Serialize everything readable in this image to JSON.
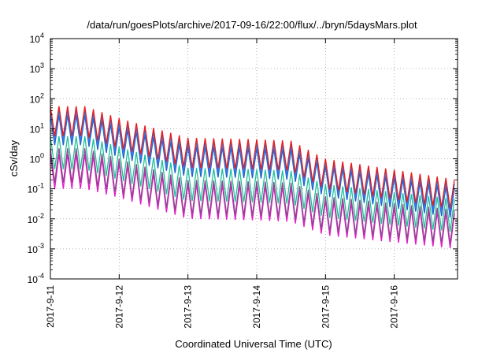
{
  "chart_data": {
    "type": "line",
    "title": "/data/run/goesPlots/archive/2017-09-16/22:00/flux/../bryn/5daysMars.plot",
    "xlabel": "Coordinated Universal Time (UTC)",
    "ylabel": "cSv/day",
    "y_scale": "log",
    "ylim_exponents": [
      -4,
      4
    ],
    "xlim_days": [
      0,
      5.92
    ],
    "grid": true,
    "x_ticks": [
      "2017-9-11",
      "2017-9-12",
      "2017-9-13",
      "2017-9-14",
      "2017-9-15",
      "2017-9-16"
    ],
    "y_ticks": [
      {
        "exp": -4,
        "base": "10",
        "sup": "-4"
      },
      {
        "exp": -3,
        "base": "10",
        "sup": "-3"
      },
      {
        "exp": -2,
        "base": "10",
        "sup": "-2"
      },
      {
        "exp": -1,
        "base": "10",
        "sup": "-1"
      },
      {
        "exp": 0,
        "base": "10",
        "sup": "0"
      },
      {
        "exp": 1,
        "base": "10",
        "sup": "1"
      },
      {
        "exp": 2,
        "base": "10",
        "sup": "2"
      },
      {
        "exp": 3,
        "base": "10",
        "sup": "3"
      },
      {
        "exp": 4,
        "base": "10",
        "sup": "4"
      }
    ],
    "oscillation_period_hours": 3,
    "series": [
      {
        "color": "#e8191a",
        "peak_log10": [
          [
            0,
            1.75
          ],
          [
            0.5,
            1.75
          ],
          [
            1.0,
            1.35
          ],
          [
            2.0,
            0.7
          ],
          [
            3.0,
            0.65
          ],
          [
            3.5,
            0.6
          ],
          [
            4.0,
            0.0
          ],
          [
            5.92,
            -0.7
          ]
        ],
        "amplitude": 1.0
      },
      {
        "color": "#2f7be6",
        "peak_log10": [
          [
            0,
            1.6
          ],
          [
            0.5,
            1.6
          ],
          [
            1.0,
            1.2
          ],
          [
            2.0,
            0.55
          ],
          [
            3.0,
            0.5
          ],
          [
            3.5,
            0.45
          ],
          [
            4.0,
            -0.1
          ],
          [
            5.92,
            -0.85
          ]
        ],
        "amplitude": 1.0
      },
      {
        "color": "#1f5fcf",
        "peak_log10": [
          [
            0,
            1.45
          ],
          [
            0.5,
            1.45
          ],
          [
            1.0,
            1.05
          ],
          [
            2.0,
            0.4
          ],
          [
            3.0,
            0.35
          ],
          [
            3.5,
            0.3
          ],
          [
            4.0,
            -0.25
          ],
          [
            5.92,
            -1.0
          ]
        ],
        "amplitude": 1.0
      },
      {
        "color": "#1fbf9a",
        "peak_log10": [
          [
            0,
            0.75
          ],
          [
            0.5,
            0.75
          ],
          [
            1.0,
            0.4
          ],
          [
            2.0,
            -0.3
          ],
          [
            3.0,
            -0.35
          ],
          [
            3.5,
            -0.4
          ],
          [
            4.0,
            -0.85
          ],
          [
            5.92,
            -1.35
          ]
        ],
        "amplitude": 1.1
      },
      {
        "color": "#8a4a8e",
        "peak_log10": [
          [
            0,
            0.35
          ],
          [
            0.5,
            0.35
          ],
          [
            1.0,
            0.0
          ],
          [
            2.0,
            -0.7
          ],
          [
            3.0,
            -0.75
          ],
          [
            3.5,
            -0.8
          ],
          [
            4.0,
            -1.25
          ],
          [
            5.92,
            -1.7
          ]
        ],
        "amplitude": 1.15
      },
      {
        "color": "#e619c8",
        "peak_log10": [
          [
            0,
            0.15
          ],
          [
            0.5,
            0.15
          ],
          [
            1.0,
            -0.15
          ],
          [
            2.0,
            -0.85
          ],
          [
            3.0,
            -0.9
          ],
          [
            3.5,
            -0.95
          ],
          [
            4.0,
            -1.4
          ],
          [
            5.92,
            -1.85
          ]
        ],
        "amplitude": 1.15
      }
    ]
  }
}
